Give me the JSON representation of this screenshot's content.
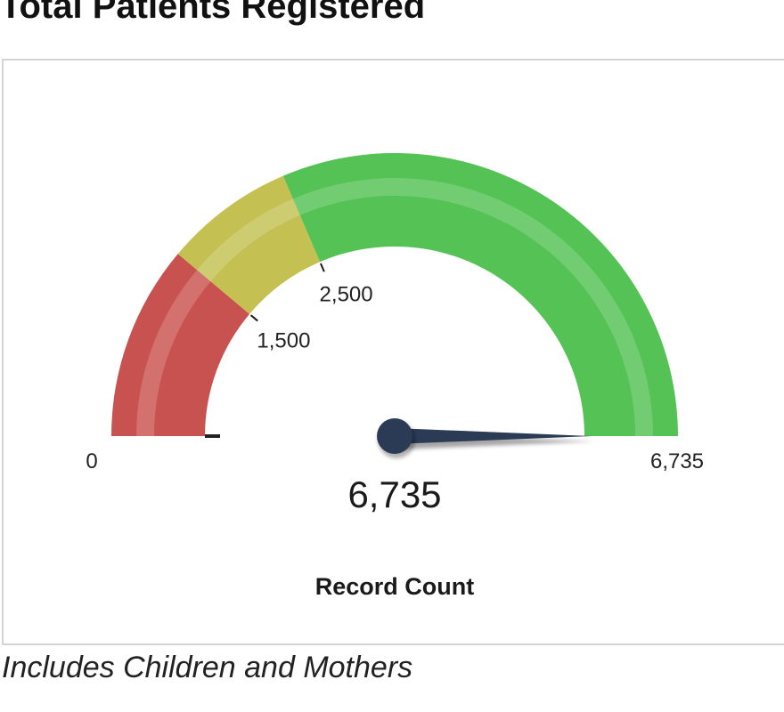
{
  "page": {
    "title": "Total Patients Registered",
    "footnote": "Includes Children and Mothers"
  },
  "chart_data": {
    "type": "gauge",
    "min": 0,
    "max": 6735,
    "value": 6735,
    "value_label": "6,735",
    "label": "Record Count",
    "min_label": "0",
    "max_label": "6,735",
    "bands": [
      {
        "from": 0,
        "to": 1500,
        "color": "#c8524f"
      },
      {
        "from": 1500,
        "to": 2500,
        "color": "#c4c152"
      },
      {
        "from": 2500,
        "to": 6735,
        "color": "#54c254"
      }
    ],
    "thresholds": [
      {
        "value": 1500,
        "label": "1,500"
      },
      {
        "value": 2500,
        "label": "2,500"
      }
    ],
    "needle_color": "#2b3a55"
  }
}
